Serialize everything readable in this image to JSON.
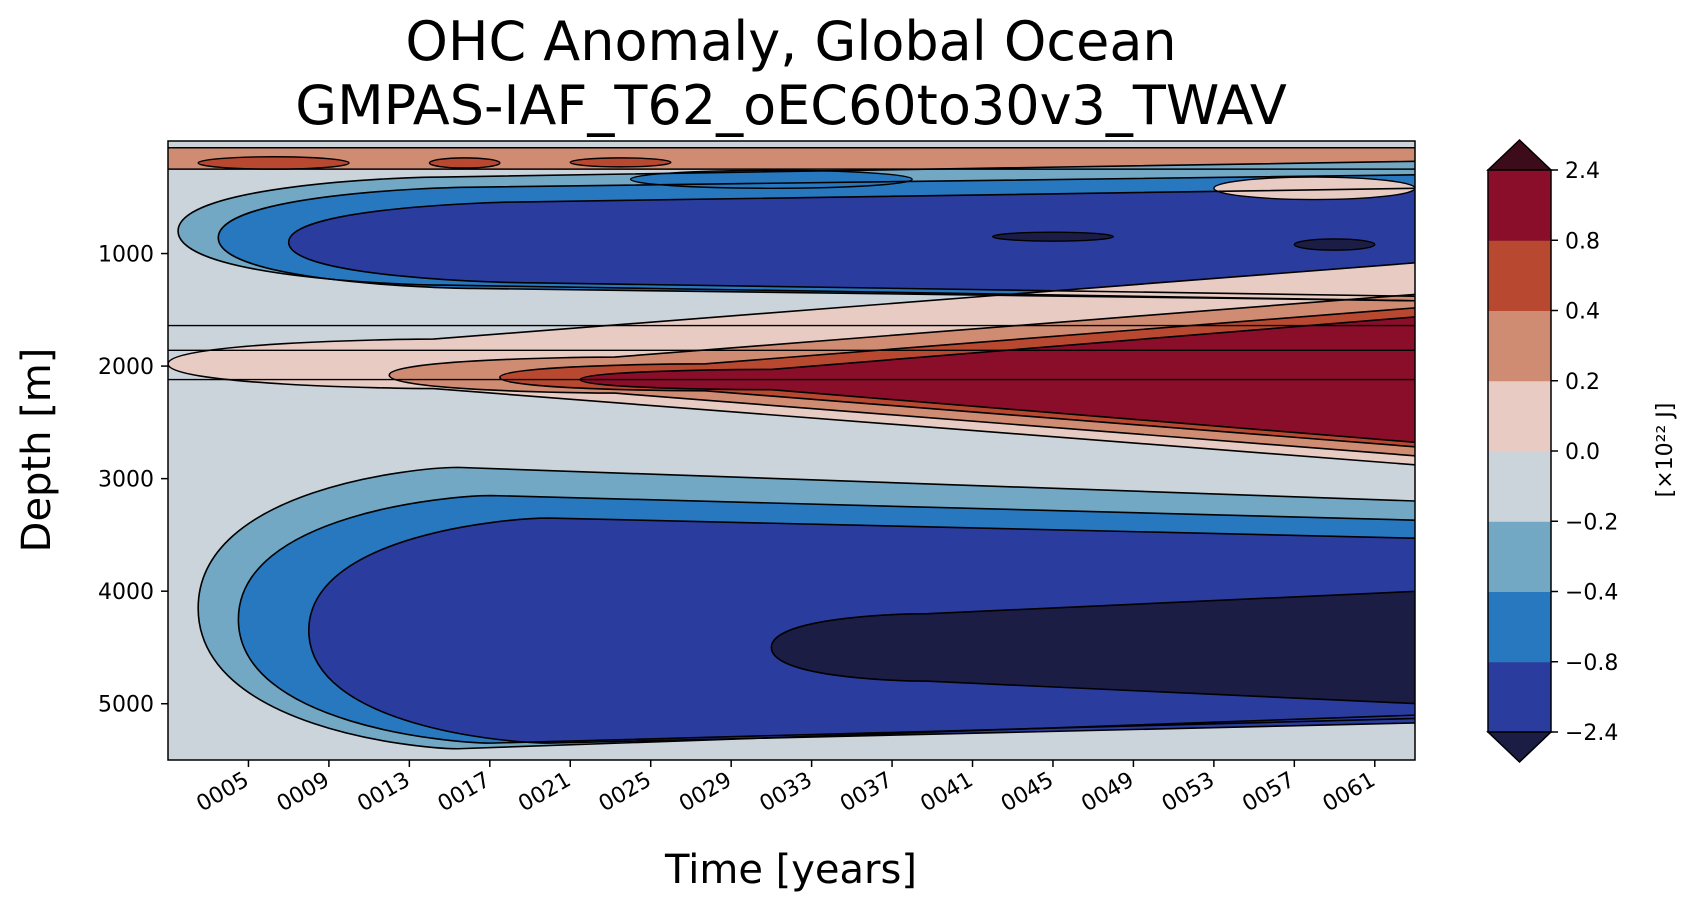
{
  "chart_data": {
    "type": "heatmap",
    "subtype": "filled-contour",
    "title": "OHC Anomaly, Global Ocean",
    "subtitle": "GMPAS-IAF_T62_oEC60to30v3_TWAV",
    "xlabel": "Time [years]",
    "ylabel": "Depth [m]",
    "xlim": [
      1,
      63
    ],
    "ylim": [
      5500,
      0
    ],
    "x_ticks": [
      {
        "value": 5,
        "label": "0005"
      },
      {
        "value": 9,
        "label": "0009"
      },
      {
        "value": 13,
        "label": "0013"
      },
      {
        "value": 17,
        "label": "0017"
      },
      {
        "value": 21,
        "label": "0021"
      },
      {
        "value": 25,
        "label": "0025"
      },
      {
        "value": 29,
        "label": "0029"
      },
      {
        "value": 33,
        "label": "0033"
      },
      {
        "value": 37,
        "label": "0037"
      },
      {
        "value": 41,
        "label": "0041"
      },
      {
        "value": 45,
        "label": "0045"
      },
      {
        "value": 49,
        "label": "0049"
      },
      {
        "value": 53,
        "label": "0053"
      },
      {
        "value": 57,
        "label": "0057"
      },
      {
        "value": 61,
        "label": "0061"
      }
    ],
    "y_ticks": [
      {
        "value": 1000,
        "label": "1000"
      },
      {
        "value": 2000,
        "label": "2000"
      },
      {
        "value": 3000,
        "label": "3000"
      },
      {
        "value": 4000,
        "label": "4000"
      },
      {
        "value": 5000,
        "label": "5000"
      }
    ],
    "colorbar": {
      "label": "[×10²² J]",
      "levels": [
        -2.4,
        -0.8,
        -0.4,
        -0.2,
        0.0,
        0.2,
        0.4,
        0.8,
        2.4
      ],
      "level_labels": [
        "−2.4",
        "−0.8",
        "−0.4",
        "−0.2",
        "0.0",
        "0.2",
        "0.4",
        "0.8",
        "2.4"
      ],
      "colors": [
        "#2a3d9e",
        "#2878bf",
        "#72a8c4",
        "#cbd4db",
        "#e8cbc3",
        "#d08c72",
        "#b84830",
        "#8a0e2a"
      ],
      "extend_low_color": "#1b1d45",
      "extend_high_color": "#3d0c1a"
    },
    "background_color": "#cbd4db",
    "regions": [
      {
        "value": 0.3,
        "kind": "band",
        "x": [
          1,
          63
        ],
        "top": [
          60,
          60
        ],
        "bottom": [
          250,
          250
        ]
      },
      {
        "value": -0.3,
        "kind": "wedge",
        "x_tip": 1.5,
        "x_end": 63,
        "y_tip": 800,
        "half_start": 480,
        "half_end": 620
      },
      {
        "value": -0.6,
        "kind": "wedge",
        "x_tip": 3.5,
        "x_end": 63,
        "y_tip": 860,
        "half_start": 450,
        "half_end": 560
      },
      {
        "value": -1.2,
        "kind": "wedge",
        "x_tip": 7,
        "x_end": 63,
        "y_tip": 900,
        "half_start": 360,
        "half_end": 480
      },
      {
        "value": -2.6,
        "kind": "blob",
        "cx": 59,
        "cy": 920,
        "rx": 2,
        "ry": 50
      },
      {
        "value": -2.6,
        "kind": "blob",
        "cx": 45,
        "cy": 850,
        "rx": 3,
        "ry": 40
      },
      {
        "value": 0.1,
        "kind": "wedge",
        "x_tip": 1,
        "x_end": 63,
        "y_tip": 1980,
        "half_start": 220,
        "half_end": 900
      },
      {
        "value": 0.3,
        "kind": "wedge",
        "x_tip": 12,
        "x_end": 63,
        "y_tip": 2080,
        "half_start": 160,
        "half_end": 720
      },
      {
        "value": 0.6,
        "kind": "wedge",
        "x_tip": 17.5,
        "x_end": 63,
        "y_tip": 2100,
        "half_start": 120,
        "half_end": 620
      },
      {
        "value": 1.2,
        "kind": "wedge",
        "x_tip": 21.5,
        "x_end": 63,
        "y_tip": 2120,
        "half_start": 90,
        "half_end": 560
      },
      {
        "value": -0.3,
        "kind": "wedge",
        "x_tip": 2.5,
        "x_end": 63,
        "y_tip": 4150,
        "half_start": 1250,
        "half_end": 950
      },
      {
        "value": -0.6,
        "kind": "wedge",
        "x_tip": 4.5,
        "x_end": 63,
        "y_tip": 4250,
        "half_start": 1100,
        "half_end": 880
      },
      {
        "value": -1.2,
        "kind": "wedge",
        "x_tip": 8,
        "x_end": 63,
        "y_tip": 4350,
        "half_start": 1000,
        "half_end": 820
      },
      {
        "value": -2.6,
        "kind": "wedge",
        "x_tip": 31,
        "x_end": 63,
        "y_tip": 4500,
        "half_start": 300,
        "half_end": 500
      }
    ],
    "surface_features": [
      {
        "value": 0.6,
        "x": [
          2.5,
          10
        ],
        "depth": [
          140,
          250
        ]
      },
      {
        "value": 0.6,
        "x": [
          14,
          17.5
        ],
        "depth": [
          150,
          240
        ]
      },
      {
        "value": 0.6,
        "x": [
          21,
          26
        ],
        "depth": [
          150,
          230
        ]
      },
      {
        "value": -0.6,
        "x": [
          24,
          38
        ],
        "depth": [
          260,
          420
        ]
      },
      {
        "value": 0.0,
        "x": [
          53,
          63
        ],
        "depth": [
          320,
          520
        ]
      }
    ]
  }
}
